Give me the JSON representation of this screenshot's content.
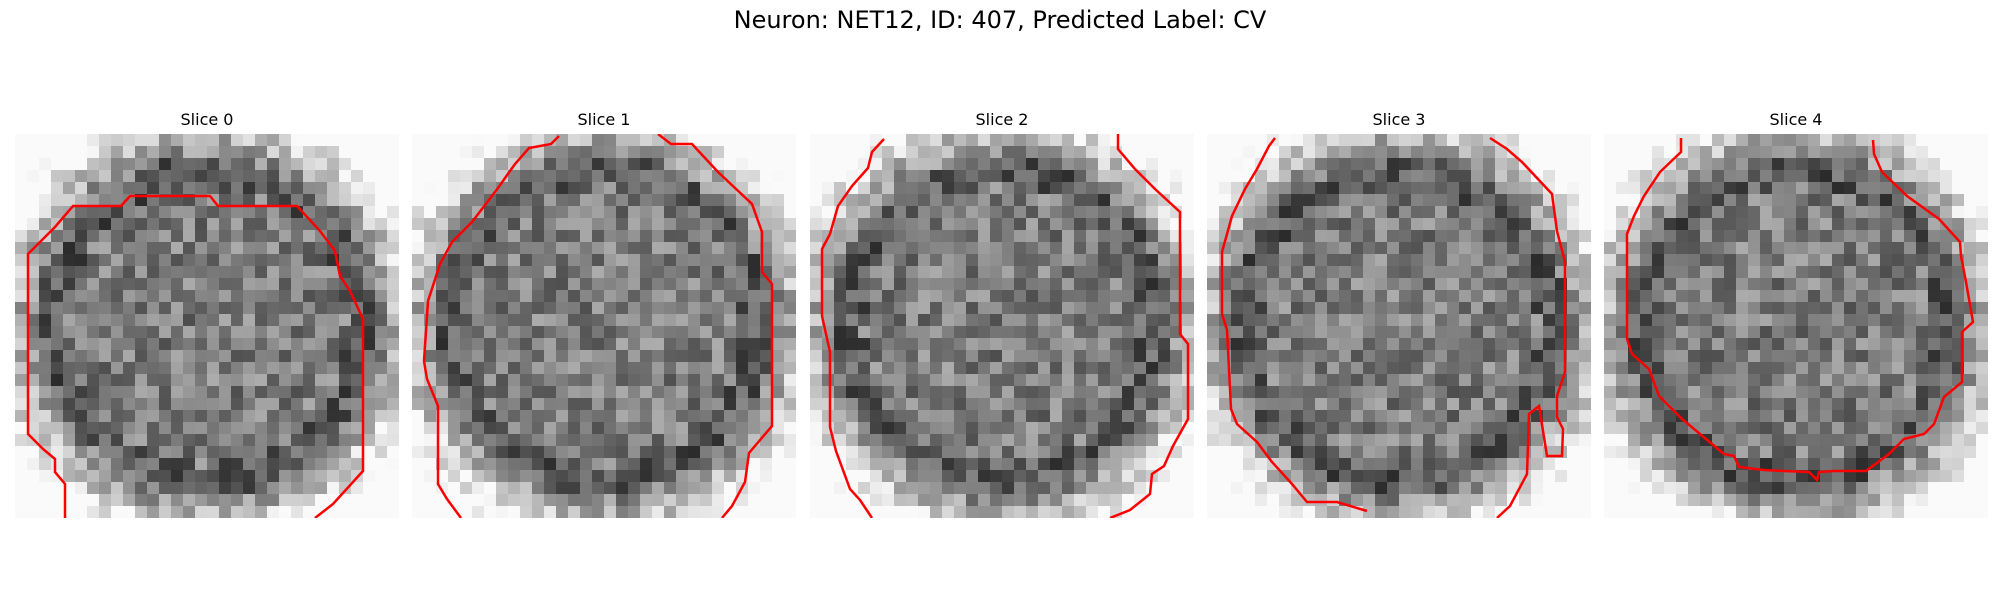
{
  "figure": {
    "title": "Neuron: NET12, ID: 407, Predicted Label: CV",
    "contour_color": "#ff0000"
  },
  "panels": [
    {
      "title": "Slice 0"
    },
    {
      "title": "Slice 1"
    },
    {
      "title": "Slice 2"
    },
    {
      "title": "Slice 3"
    },
    {
      "title": "Slice 4"
    }
  ]
}
